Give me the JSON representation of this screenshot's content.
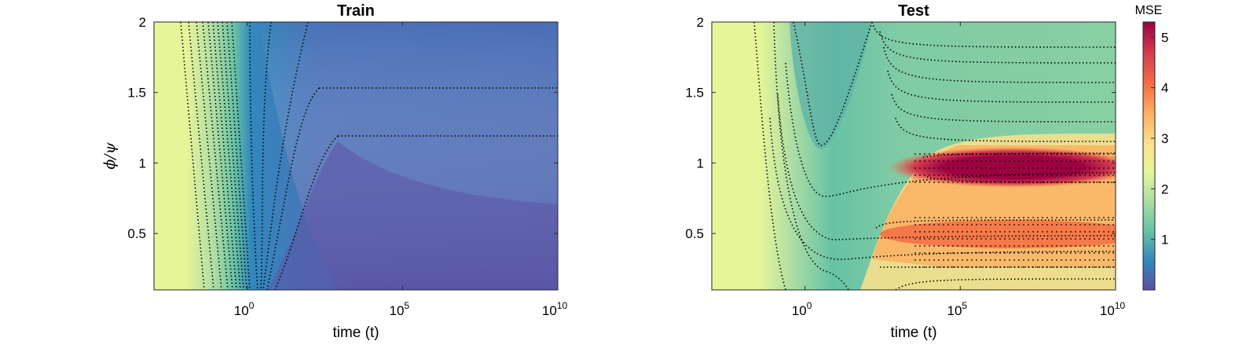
{
  "chart_data": [
    {
      "type": "heatmap",
      "title": "Train",
      "xlabel": "time (t)",
      "ylabel": "ϕ/ψ",
      "x_scale": "log",
      "xlim": [
        "10^-3",
        "10^10"
      ],
      "x_ticks": [
        {
          "base": "10",
          "exp": "0"
        },
        {
          "base": "10",
          "exp": "5"
        },
        {
          "base": "10",
          "exp": "10"
        }
      ],
      "ylim": [
        0.1,
        2
      ],
      "y_ticks": [
        "0.5",
        "1",
        "1.5",
        "2"
      ],
      "description_values": {
        "value_range_mse": [
          0.1,
          2.6
        ],
        "early_time_mse": 2.6,
        "late_time_mse_at_y_2": 0.95,
        "late_time_mse_at_y_0_1": 0.1
      },
      "contours": "dotted"
    },
    {
      "type": "heatmap",
      "title": "Test",
      "xlabel": "time (t)",
      "ylabel": "",
      "x_scale": "log",
      "xlim": [
        "10^-3",
        "10^10"
      ],
      "x_ticks": [
        {
          "base": "10",
          "exp": "0"
        },
        {
          "base": "10",
          "exp": "5"
        },
        {
          "base": "10",
          "exp": "10"
        }
      ],
      "ylim": [
        0.1,
        2
      ],
      "y_ticks": [
        "0.5",
        "1",
        "1.5",
        "2"
      ],
      "description_values": {
        "early_time_mse": 2.6,
        "minimum_mse_near_t_1": 1.2,
        "peak_mse_at_y_1_late": 5.3,
        "secondary_peak_at_y_0_5_late": 4.0
      },
      "contours": "dotted"
    }
  ],
  "colorbar": {
    "title": "MSE",
    "range": [
      0,
      5.3
    ],
    "ticks": [
      "1",
      "2",
      "3",
      "4",
      "5"
    ],
    "colors": [
      "#5e4fa2",
      "#3288bd",
      "#66c2a5",
      "#abdda4",
      "#e6f598",
      "#fee08b",
      "#fdae61",
      "#f46d43",
      "#d53e4f",
      "#9e0142"
    ]
  }
}
